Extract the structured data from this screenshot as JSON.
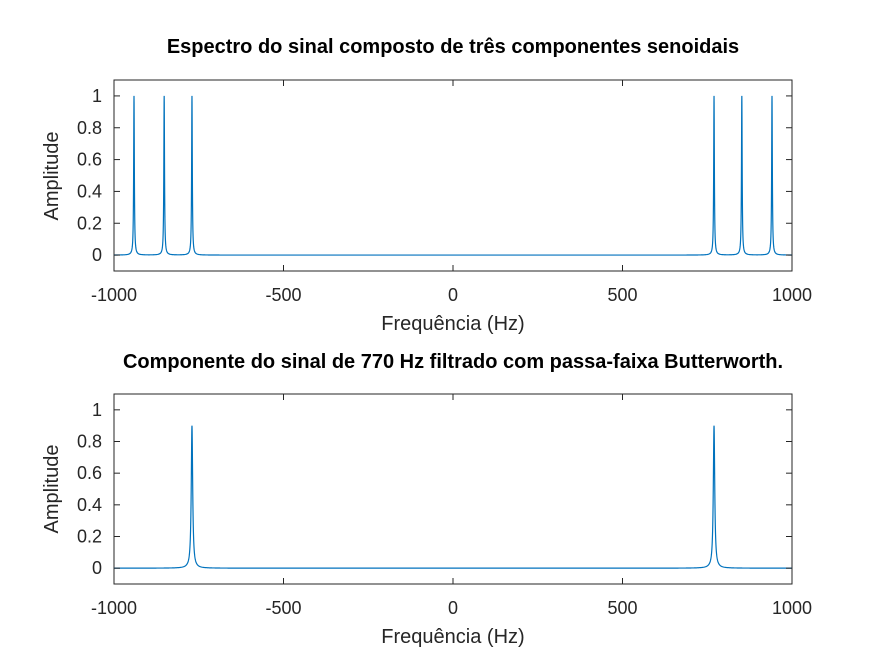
{
  "chart_data": [
    {
      "type": "line",
      "title": "Espectro do sinal composto de três componentes senoidais",
      "xlabel": "Frequência (Hz)",
      "ylabel": "Amplitude",
      "xlim": [
        -1000,
        1000
      ],
      "ylim": [
        -0.1,
        1.1
      ],
      "xticks": [
        -1000,
        -500,
        0,
        500,
        1000
      ],
      "xtick_labels": [
        "-1000",
        "-500",
        "0",
        "500",
        "1000"
      ],
      "yticks": [
        0,
        0.2,
        0.4,
        0.6,
        0.8,
        1
      ],
      "ytick_labels": [
        "0",
        "0.2",
        "0.4",
        "0.6",
        "0.8",
        "1"
      ],
      "grid": false,
      "color": "#0072BD",
      "peaks": [
        {
          "x": -941,
          "y": 1,
          "width": 1.2
        },
        {
          "x": -852,
          "y": 1,
          "width": 1.2
        },
        {
          "x": -770,
          "y": 1,
          "width": 1.2
        },
        {
          "x": 770,
          "y": 1,
          "width": 1.2
        },
        {
          "x": 852,
          "y": 1,
          "width": 1.2
        },
        {
          "x": 941,
          "y": 1,
          "width": 1.2
        }
      ]
    },
    {
      "type": "line",
      "title": "Componente do sinal de 770 Hz filtrado com passa-faixa Butterworth.",
      "xlabel": "Frequência (Hz)",
      "ylabel": "Amplitude",
      "xlim": [
        -1000,
        1000
      ],
      "ylim": [
        -0.1,
        1.1
      ],
      "xticks": [
        -1000,
        -500,
        0,
        500,
        1000
      ],
      "xtick_labels": [
        "-1000",
        "-500",
        "0",
        "500",
        "1000"
      ],
      "yticks": [
        0,
        0.2,
        0.4,
        0.6,
        0.8,
        1
      ],
      "ytick_labels": [
        "0",
        "0.2",
        "0.4",
        "0.6",
        "0.8",
        "1"
      ],
      "grid": false,
      "color": "#0072BD",
      "peaks": [
        {
          "x": -770,
          "y": 0.9,
          "width": 2.5
        },
        {
          "x": 770,
          "y": 0.9,
          "width": 2.5
        }
      ]
    }
  ]
}
